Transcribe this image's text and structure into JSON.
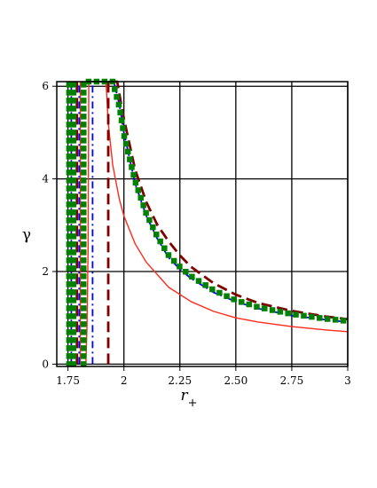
{
  "chart_data": {
    "type": "line",
    "xlabel": "r",
    "xlabel_sub": "+",
    "ylabel": "γ",
    "xlim": [
      1.7,
      3.0
    ],
    "ylim": [
      -0.05,
      6.1
    ],
    "x_ticks": [
      1.75,
      2,
      2.25,
      2.5,
      2.75,
      3
    ],
    "x_tick_labels": [
      "1.75",
      "2",
      "2.25",
      "2.50",
      "2.75",
      "3"
    ],
    "y_ticks": [
      0,
      2,
      4,
      6
    ],
    "y_tick_labels": [
      "0",
      "2",
      "4",
      "6"
    ],
    "grid": true,
    "series": [
      {
        "style": "solid",
        "color": "#ff2a1a",
        "asymptote": 1.845,
        "x": [
          1.83,
          1.835,
          1.84,
          1.843,
          1.92,
          1.93,
          1.95,
          1.98,
          2.0,
          2.05,
          2.1,
          2.2,
          2.3,
          2.4,
          2.5,
          2.6,
          2.75,
          2.9,
          3.0
        ],
        "y": [
          0,
          0.8,
          2.5,
          6.1,
          6.1,
          5.2,
          4.3,
          3.55,
          3.2,
          2.6,
          2.2,
          1.66,
          1.35,
          1.14,
          1.0,
          0.91,
          0.81,
          0.74,
          0.7
        ]
      },
      {
        "style": "longdash",
        "color": "#800000",
        "asymptote": 1.935,
        "x": [
          1.93,
          1.93,
          1.97,
          1.99,
          2.0,
          2.05,
          2.1,
          2.15,
          2.2,
          2.25,
          2.3,
          2.4,
          2.5,
          2.6,
          2.75,
          2.9,
          3.0
        ],
        "y": [
          0,
          6.1,
          6.1,
          5.55,
          5.3,
          4.2,
          3.5,
          3.0,
          2.65,
          2.35,
          2.1,
          1.75,
          1.5,
          1.32,
          1.15,
          1.03,
          0.97
        ]
      },
      {
        "style": "dashdot",
        "color": "#0000ff",
        "asymptote": 1.865,
        "x": [
          1.86,
          1.86,
          1.955,
          1.98,
          2.0,
          2.05,
          2.1,
          2.15,
          2.2,
          2.25,
          2.3,
          2.4,
          2.5,
          2.6,
          2.75,
          2.9,
          3.0
        ],
        "y": [
          0,
          6.1,
          6.1,
          5.6,
          5.0,
          3.9,
          3.2,
          2.7,
          2.3,
          2.05,
          1.85,
          1.55,
          1.35,
          1.2,
          1.05,
          0.96,
          0.91
        ]
      },
      {
        "style": "dotted",
        "color": "#008000",
        "asymptote": 1.83,
        "x": [
          1.82,
          1.82,
          1.95,
          1.98,
          2.0,
          2.05,
          2.1,
          2.15,
          2.2,
          2.25,
          2.3,
          2.4,
          2.5,
          2.6,
          2.75,
          2.9,
          3.0
        ],
        "y": [
          0,
          6.1,
          6.1,
          5.55,
          4.95,
          3.95,
          3.25,
          2.75,
          2.35,
          2.1,
          1.9,
          1.6,
          1.38,
          1.23,
          1.08,
          0.98,
          0.93
        ]
      },
      {
        "style": "longdash",
        "color": "#800000",
        "asymptote": 1.79,
        "x": [
          1.79,
          1.79
        ],
        "y": [
          0,
          6.1
        ]
      },
      {
        "style": "dashdot",
        "color": "#0000ff",
        "asymptote": 1.77,
        "x": [
          1.765,
          1.765
        ],
        "y": [
          0,
          6.1
        ]
      },
      {
        "style": "dotted",
        "color": "#008000",
        "asymptote": 1.755,
        "x": [
          1.755,
          1.755
        ],
        "y": [
          0,
          6.1
        ]
      },
      {
        "style": "solid",
        "color": "#ff2a1a",
        "asymptote": 1.805,
        "x": [
          1.805,
          1.805
        ],
        "y": [
          0,
          6.1
        ]
      },
      {
        "style": "dotted",
        "color": "#008000",
        "asymptote": 1.775,
        "x": [
          1.775,
          1.775
        ],
        "y": [
          0,
          6.1
        ]
      },
      {
        "style": "dashdot",
        "color": "#0000ff",
        "asymptote": 1.8,
        "x": [
          1.8,
          1.8
        ],
        "y": [
          0,
          6.1
        ]
      }
    ]
  }
}
